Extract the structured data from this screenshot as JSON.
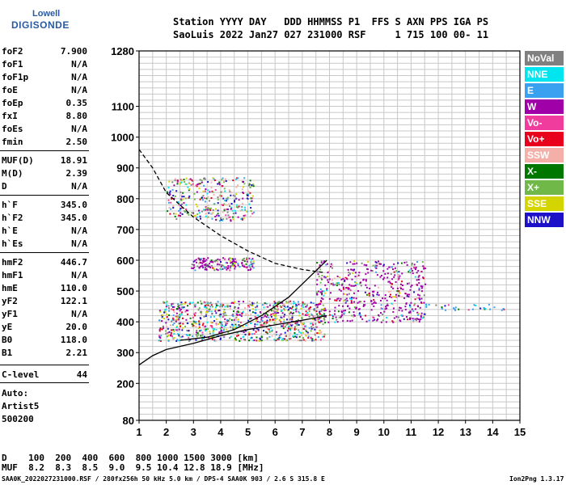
{
  "logo": {
    "top": "Lowell",
    "bottom": "DIGISONDE"
  },
  "header": {
    "line1": "Station YYYY DAY   DDD HHMMSS P1  FFS S AXN PPS IGA PS",
    "line2": "SaoLuis 2022 Jan27 027 231000 RSF     1 715 100 00- 11"
  },
  "params": [
    {
      "label": "foF2",
      "value": "7.900"
    },
    {
      "label": "foF1",
      "value": "N/A"
    },
    {
      "label": "foF1p",
      "value": "N/A"
    },
    {
      "label": "foE",
      "value": "N/A"
    },
    {
      "label": "foEp",
      "value": "0.35"
    },
    {
      "label": "fxI",
      "value": "8.80"
    },
    {
      "label": "foEs",
      "value": "N/A"
    },
    {
      "label": "fmin",
      "value": "2.50"
    },
    {
      "label": "MUF(D)",
      "value": "18.91"
    },
    {
      "label": "M(D)",
      "value": "2.39"
    },
    {
      "label": "D",
      "value": "N/A"
    },
    {
      "label": "h`F",
      "value": "345.0"
    },
    {
      "label": "h`F2",
      "value": "345.0"
    },
    {
      "label": "h`E",
      "value": "N/A"
    },
    {
      "label": "h`Es",
      "value": "N/A"
    },
    {
      "label": "hmF2",
      "value": "446.7"
    },
    {
      "label": "hmF1",
      "value": "N/A"
    },
    {
      "label": "hmE",
      "value": "110.0"
    },
    {
      "label": "yF2",
      "value": "122.1"
    },
    {
      "label": "yF1",
      "value": "N/A"
    },
    {
      "label": "yE",
      "value": "20.0"
    },
    {
      "label": "B0",
      "value": "118.0"
    },
    {
      "label": "B1",
      "value": "2.21"
    },
    {
      "label": "C-level",
      "value": "44"
    }
  ],
  "auto": {
    "line1": "Auto:",
    "line2": "Artist5",
    "line3": "500200"
  },
  "legend": [
    {
      "label": "NoVal",
      "color": "#808080"
    },
    {
      "label": "NNE",
      "color": "#00e5ee"
    },
    {
      "label": "E",
      "color": "#3aa0f0"
    },
    {
      "label": "W",
      "color": "#a000a8"
    },
    {
      "label": "Vo-",
      "color": "#f03c9c"
    },
    {
      "label": "Vo+",
      "color": "#e8001c"
    },
    {
      "label": "SSW",
      "color": "#f4b0a8"
    },
    {
      "label": "X-",
      "color": "#007800"
    },
    {
      "label": "X+",
      "color": "#70b848"
    },
    {
      "label": "SSE",
      "color": "#d4d400"
    },
    {
      "label": "NNW",
      "color": "#1c10c8"
    }
  ],
  "dmuf": {
    "line1": "D    100  200  400  600  800 1000 1500 3000 [km]",
    "line2": "MUF  8.2  8.3  8.5  9.0  9.5 10.4 12.8 18.9 [MHz]"
  },
  "footer": {
    "left": "SAA0K_2022027231000.RSF / 280fx256h 50 kHz 5.0 km / DPS-4 SAA0K 903 / 2.6 S 315.8 E",
    "right": "Ion2Png 1.3.17"
  },
  "chart_data": {
    "type": "scatter",
    "title": "",
    "xlabel": "",
    "ylabel": "",
    "xlim": [
      1,
      15
    ],
    "ylim": [
      80,
      1280
    ],
    "x_ticks": [
      1,
      2,
      3,
      4,
      5,
      6,
      7,
      8,
      9,
      10,
      11,
      12,
      13,
      14,
      15
    ],
    "y_ticks": [
      80,
      200,
      300,
      400,
      500,
      600,
      700,
      800,
      900,
      1000,
      1100,
      1280
    ],
    "grid": true,
    "legend_position": "right",
    "echo_regions": [
      {
        "x": [
          1.7,
          7.8
        ],
        "y": [
          340,
          470
        ],
        "dominant": "mixed"
      },
      {
        "x": [
          2.0,
          5.2
        ],
        "y": [
          730,
          870
        ],
        "dominant": "mixed"
      },
      {
        "x": [
          2.9,
          5.2
        ],
        "y": [
          570,
          610
        ],
        "dominant": "W"
      },
      {
        "x": [
          7.5,
          11.5
        ],
        "y": [
          400,
          600
        ],
        "dominant": "W"
      },
      {
        "x": [
          11.5,
          14.5
        ],
        "y": [
          440,
          460
        ],
        "dominant": "E"
      }
    ],
    "series": [
      {
        "style": "solid",
        "points": [
          [
            1,
            260
          ],
          [
            1.5,
            290
          ],
          [
            2,
            310
          ],
          [
            3,
            330
          ],
          [
            4,
            355
          ],
          [
            5,
            375
          ],
          [
            6,
            390
          ],
          [
            7,
            405
          ],
          [
            7.9,
            420
          ]
        ]
      },
      {
        "style": "solid",
        "points": [
          [
            2.5,
            340
          ],
          [
            3.5,
            350
          ],
          [
            4.5,
            375
          ],
          [
            5.5,
            420
          ],
          [
            6.5,
            480
          ],
          [
            7.2,
            540
          ],
          [
            7.9,
            600
          ]
        ]
      },
      {
        "style": "dashed",
        "points": [
          [
            1,
            960
          ],
          [
            1.5,
            900
          ],
          [
            2,
            820
          ],
          [
            3,
            740
          ],
          [
            4,
            680
          ],
          [
            5,
            630
          ],
          [
            6,
            590
          ],
          [
            7,
            570
          ],
          [
            7.8,
            560
          ]
        ]
      }
    ]
  }
}
